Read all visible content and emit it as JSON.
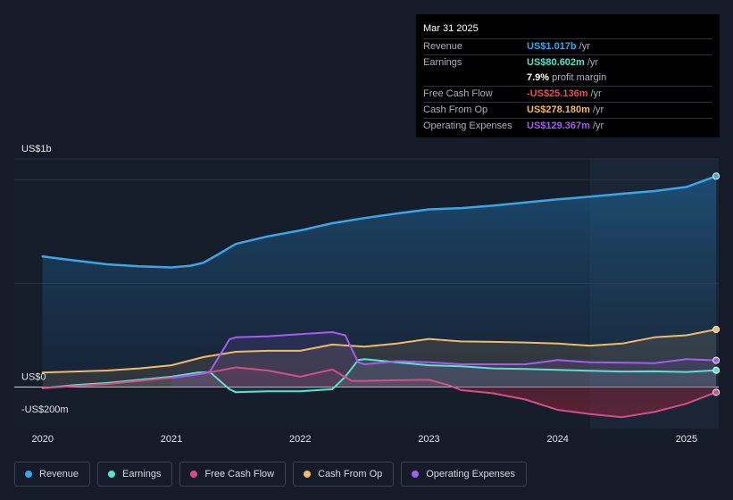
{
  "tooltip": {
    "date": "Mar 31 2025",
    "rows": [
      {
        "label": "Revenue",
        "value": "US$1.017b",
        "unit": "/yr",
        "color": "#3ca5e8"
      },
      {
        "label": "Earnings",
        "value": "US$80.602m",
        "unit": "/yr",
        "color": "#5ee0c9"
      },
      {
        "label": "",
        "value": "7.9%",
        "unit": "profit margin",
        "color": "#ffffff"
      },
      {
        "label": "Free Cash Flow",
        "value": "-US$25.136m",
        "unit": "/yr",
        "color": "#ef4a5c"
      },
      {
        "label": "Cash From Op",
        "value": "US$278.180m",
        "unit": "/yr",
        "color": "#f2b967"
      },
      {
        "label": "Operating Expenses",
        "value": "US$129.367m",
        "unit": "/yr",
        "color": "#a35ef0"
      }
    ]
  },
  "legend": [
    {
      "label": "Revenue",
      "color": "#3ca5e8"
    },
    {
      "label": "Earnings",
      "color": "#5ee0c9"
    },
    {
      "label": "Free Cash Flow",
      "color": "#d24f87"
    },
    {
      "label": "Cash From Op",
      "color": "#f2b967"
    },
    {
      "label": "Operating Expenses",
      "color": "#a35ef0"
    }
  ],
  "chart_data": {
    "type": "line",
    "title": "",
    "units": "US$m",
    "ylim": [
      -200,
      1100
    ],
    "y_tick_labels": [
      {
        "value": 1000,
        "label": "US$1b"
      },
      {
        "value": 0,
        "label": "US$0"
      },
      {
        "value": -200,
        "label": "-US$200m"
      }
    ],
    "x_ticks": [
      {
        "value": 2020.0,
        "label": "2020"
      },
      {
        "value": 2021.0,
        "label": "2021"
      },
      {
        "value": 2022.0,
        "label": "2022"
      },
      {
        "value": 2023.0,
        "label": "2023"
      },
      {
        "value": 2024.0,
        "label": "2024"
      },
      {
        "value": 2025.0,
        "label": "2025"
      }
    ],
    "xlim": [
      2019.78,
      2025.25
    ],
    "forecast_start": 2024.25,
    "series": [
      {
        "name": "Revenue",
        "color": "#3ca5e8",
        "area": true,
        "x": [
          2020.0,
          2020.25,
          2020.5,
          2020.75,
          2021.0,
          2021.15,
          2021.25,
          2021.35,
          2021.5,
          2021.75,
          2022.0,
          2022.25,
          2022.5,
          2022.75,
          2023.0,
          2023.25,
          2023.5,
          2023.75,
          2024.0,
          2024.25,
          2024.5,
          2024.75,
          2025.0,
          2025.23
        ],
        "y": [
          630,
          610,
          592,
          582,
          577,
          585,
          600,
          635,
          690,
          727,
          755,
          790,
          815,
          837,
          857,
          863,
          875,
          890,
          905,
          918,
          932,
          945,
          965,
          1017
        ]
      },
      {
        "name": "Earnings",
        "color": "#5ee0c9",
        "x": [
          2020.0,
          2020.25,
          2020.5,
          2020.75,
          2021.0,
          2021.2,
          2021.3,
          2021.45,
          2021.5,
          2021.75,
          2022.0,
          2022.25,
          2022.35,
          2022.45,
          2022.5,
          2022.75,
          2023.0,
          2023.25,
          2023.5,
          2023.75,
          2024.0,
          2024.25,
          2024.5,
          2024.75,
          2025.0,
          2025.23
        ],
        "y": [
          -5,
          10,
          20,
          35,
          50,
          70,
          72,
          -10,
          -25,
          -20,
          -20,
          -10,
          50,
          130,
          135,
          120,
          105,
          100,
          90,
          87,
          83,
          79,
          75,
          76,
          73,
          81
        ]
      },
      {
        "name": "Free Cash Flow",
        "color": "#d24f87",
        "x": [
          2020.0,
          2020.25,
          2020.5,
          2020.75,
          2021.0,
          2021.25,
          2021.5,
          2021.75,
          2022.0,
          2022.25,
          2022.4,
          2022.5,
          2022.75,
          2023.0,
          2023.15,
          2023.25,
          2023.5,
          2023.75,
          2024.0,
          2024.25,
          2024.5,
          2024.75,
          2025.0,
          2025.23
        ],
        "y": [
          -5,
          5,
          15,
          30,
          45,
          65,
          95,
          80,
          50,
          85,
          30,
          30,
          33,
          35,
          10,
          -15,
          -30,
          -60,
          -110,
          -130,
          -145,
          -120,
          -80,
          -25
        ]
      },
      {
        "name": "Cash From Op",
        "color": "#f2b967",
        "x": [
          2020.0,
          2020.25,
          2020.5,
          2020.75,
          2021.0,
          2021.25,
          2021.5,
          2021.75,
          2022.0,
          2022.25,
          2022.5,
          2022.75,
          2023.0,
          2023.25,
          2023.5,
          2023.75,
          2024.0,
          2024.25,
          2024.5,
          2024.75,
          2025.0,
          2025.23
        ],
        "y": [
          70,
          75,
          80,
          90,
          105,
          145,
          170,
          175,
          175,
          205,
          195,
          210,
          232,
          220,
          218,
          215,
          210,
          200,
          210,
          240,
          250,
          278
        ]
      },
      {
        "name": "Operating Expenses",
        "color": "#a35ef0",
        "x": [
          2021.0,
          2021.2,
          2021.3,
          2021.45,
          2021.5,
          2021.75,
          2022.0,
          2022.25,
          2022.35,
          2022.45,
          2022.5,
          2022.75,
          2023.0,
          2023.25,
          2023.5,
          2023.75,
          2024.0,
          2024.25,
          2024.5,
          2024.75,
          2025.0,
          2025.23
        ],
        "y": [
          45,
          60,
          75,
          230,
          240,
          245,
          255,
          265,
          250,
          120,
          110,
          125,
          120,
          110,
          110,
          110,
          130,
          120,
          118,
          115,
          135,
          129
        ]
      }
    ]
  }
}
